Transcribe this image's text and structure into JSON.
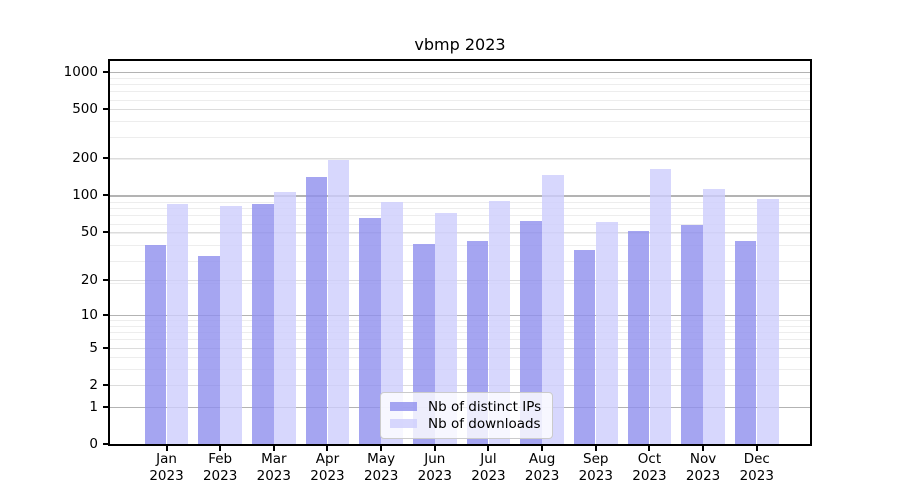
{
  "chart_data": {
    "type": "bar",
    "title": "vbmp 2023",
    "y_scale": "log1p",
    "grid": true,
    "legend_position": "lower-center",
    "categories": [
      "Jan 2023",
      "Feb 2023",
      "Mar 2023",
      "Apr 2023",
      "May 2023",
      "Jun 2023",
      "Jul 2023",
      "Aug 2023",
      "Sep 2023",
      "Oct 2023",
      "Nov 2023",
      "Dec 2023"
    ],
    "y_ticks": [
      0,
      1,
      2,
      5,
      10,
      20,
      50,
      100,
      200,
      500,
      1000
    ],
    "ylim": [
      0,
      1230
    ],
    "series": [
      {
        "name": "Nb of distinct IPs",
        "color": "rgba(143,143,238,0.8)",
        "values": [
          39,
          32,
          85,
          140,
          65,
          40,
          42,
          62,
          36,
          51,
          57,
          42
        ]
      },
      {
        "name": "Nb of downloads",
        "color": "rgba(205,205,252,0.8)",
        "values": [
          85,
          82,
          107,
          193,
          89,
          72,
          90,
          146,
          61,
          165,
          113,
          94
        ]
      }
    ]
  }
}
